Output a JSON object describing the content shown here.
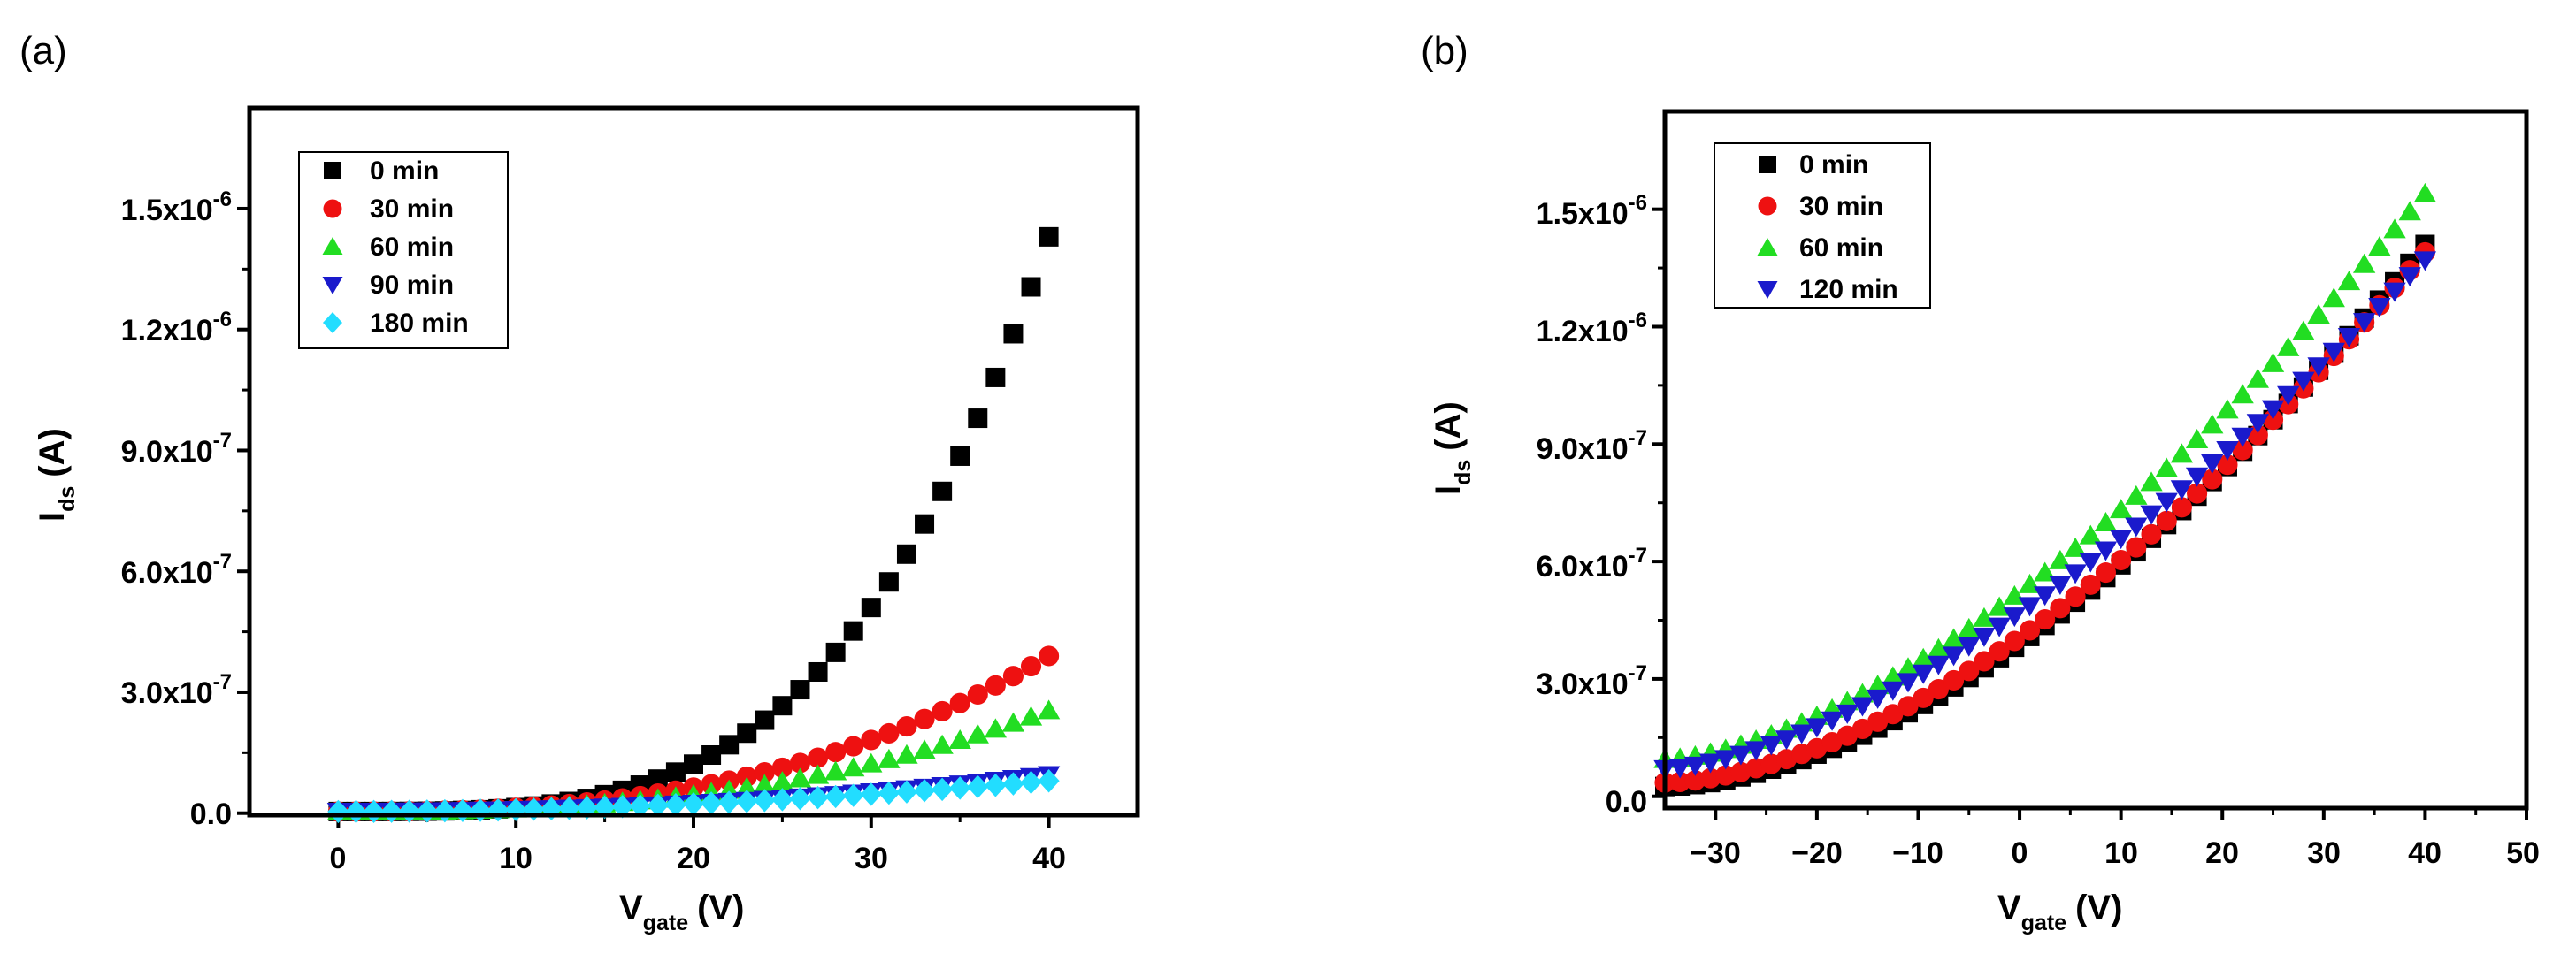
{
  "chart_data": [
    {
      "type": "scatter",
      "panel_label": "(a)",
      "xlabel": "V",
      "xlabel_sub": "gate",
      "xlabel_unit": "(V)",
      "ylabel": "I",
      "ylabel_sub": "ds",
      "ylabel_unit": "(A)",
      "xlim": [
        -5,
        45
      ],
      "ylim": [
        -5e-09,
        1.75e-06
      ],
      "xticks": [
        0,
        10,
        20,
        30,
        40
      ],
      "xtick_labels": [
        "0",
        "10",
        "20",
        "30",
        "40"
      ],
      "yticks": [
        0,
        3e-07,
        6e-07,
        9e-07,
        1.2e-06,
        1.5e-06
      ],
      "ytick_labels": [
        {
          "mant": "0.0",
          "exp": ""
        },
        {
          "mant": "3.0x10",
          "exp": "-7"
        },
        {
          "mant": "6.0x10",
          "exp": "-7"
        },
        {
          "mant": "9.0x10",
          "exp": "-7"
        },
        {
          "mant": "1.2x10",
          "exp": "-6"
        },
        {
          "mant": "1.5x10",
          "exp": "-6"
        }
      ],
      "legend_position": "top-left",
      "series": [
        {
          "name": "0 min",
          "marker": "square",
          "color": "#000000",
          "x_start": 0,
          "x_end": 40,
          "x_step": 1,
          "y_end": 1.43e-06,
          "shape": 3.6,
          "offset": 4e-09
        },
        {
          "name": "30 min",
          "marker": "circle",
          "color": "#ee1111",
          "x_start": 0,
          "x_end": 40,
          "x_step": 1,
          "y_end": 3.9e-07,
          "shape": 2.7,
          "offset": 4e-09
        },
        {
          "name": "60 min",
          "marker": "triangle-up",
          "color": "#22dd22",
          "x_start": 0,
          "x_end": 40,
          "x_step": 1,
          "y_end": 2.55e-07,
          "shape": 2.6,
          "offset": 4e-09
        },
        {
          "name": "90 min",
          "marker": "triangle-down",
          "color": "#1a1acc",
          "x_start": 0,
          "x_end": 40,
          "x_step": 1,
          "y_end": 9.5e-08,
          "shape": 2.2,
          "offset": 4e-09
        },
        {
          "name": "180 min",
          "marker": "diamond",
          "color": "#22ddff",
          "x_start": 0,
          "x_end": 40,
          "x_step": 1,
          "y_end": 8e-08,
          "shape": 2.0,
          "offset": 4e-09
        }
      ]
    },
    {
      "type": "scatter",
      "panel_label": "(b)",
      "xlabel": "V",
      "xlabel_sub": "gate",
      "xlabel_unit": "(V)",
      "ylabel": "I",
      "ylabel_sub": "ds",
      "ylabel_unit": "(A)",
      "xlim": [
        -35,
        50
      ],
      "ylim": [
        -3e-08,
        1.75e-06
      ],
      "xticks": [
        -30,
        -20,
        -10,
        0,
        10,
        20,
        30,
        40,
        50
      ],
      "xtick_labels": [
        "−30",
        "−20",
        "−10",
        "0",
        "10",
        "20",
        "30",
        "40",
        "50"
      ],
      "yticks": [
        0,
        3e-07,
        6e-07,
        9e-07,
        1.2e-06,
        1.5e-06
      ],
      "ytick_labels": [
        {
          "mant": "0.0",
          "exp": ""
        },
        {
          "mant": "3.0x10",
          "exp": "-7"
        },
        {
          "mant": "6.0x10",
          "exp": "-7"
        },
        {
          "mant": "9.0x10",
          "exp": "-7"
        },
        {
          "mant": "1.2x10",
          "exp": "-6"
        },
        {
          "mant": "1.5x10",
          "exp": "-6"
        }
      ],
      "legend_position": "top-left",
      "series": [
        {
          "name": "0 min",
          "marker": "square",
          "color": "#000000",
          "x_start": -35,
          "x_end": 40,
          "x_step": 1.5,
          "y_start": 2.5e-08,
          "y_end": 1.41e-06,
          "shape": 1.75
        },
        {
          "name": "30 min",
          "marker": "circle",
          "color": "#ee1111",
          "x_start": -35,
          "x_end": 40,
          "x_step": 1.5,
          "y_start": 3.5e-08,
          "y_end": 1.39e-06,
          "shape": 1.7
        },
        {
          "name": "60 min",
          "marker": "triangle-up",
          "color": "#22dd22",
          "x_start": -35,
          "x_end": 40,
          "x_step": 1.5,
          "y_start": 9.5e-08,
          "y_end": 1.54e-06,
          "shape": 1.6
        },
        {
          "name": "120 min",
          "marker": "triangle-down",
          "color": "#1a1acc",
          "x_start": -35,
          "x_end": 40,
          "x_step": 1.5,
          "y_start": 7e-08,
          "y_end": 1.37e-06,
          "shape": 1.55
        }
      ]
    }
  ]
}
